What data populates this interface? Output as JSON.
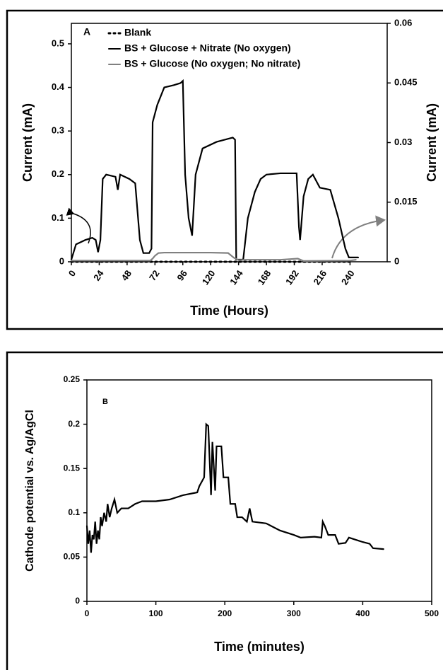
{
  "chart_data": [
    {
      "type": "line",
      "annotation": "A",
      "x_label": "Time (Hours)",
      "y_label": "Current (mA)",
      "y2_label": "Current (mA)",
      "xlim": [
        0,
        272
      ],
      "xticks": [
        0,
        24,
        48,
        72,
        96,
        120,
        144,
        168,
        192,
        216,
        240
      ],
      "ylim": [
        0,
        0.547
      ],
      "yticks": [
        0,
        0.1,
        0.2,
        0.3,
        0.4,
        0.5
      ],
      "y2lim": [
        0,
        0.06
      ],
      "y2ticks": [
        0,
        0.015,
        0.03,
        0.045,
        0.06
      ],
      "legend": "top-left",
      "series": [
        {
          "name": "Blank",
          "color": "#000000",
          "line_style": "dotted",
          "x": [
            0,
            240
          ],
          "values": [
            0,
            0
          ]
        },
        {
          "name": "BS + Glucose + Nitrate (No oxygen)",
          "color": "#000000",
          "line_style": "solid",
          "x": [
            0,
            4,
            12,
            18,
            21,
            23,
            25,
            27,
            30,
            38,
            40,
            42,
            50,
            55,
            59,
            62,
            67,
            69,
            70,
            74,
            80,
            88,
            94,
            96,
            98,
            101,
            104,
            107,
            113,
            125,
            139,
            141,
            142,
            148,
            152,
            158,
            163,
            168,
            180,
            194,
            196,
            197,
            200,
            204,
            208,
            212,
            214,
            223,
            230,
            236,
            239,
            247
          ],
          "values": [
            0.005,
            0.04,
            0.05,
            0.055,
            0.05,
            0.022,
            0.05,
            0.19,
            0.2,
            0.195,
            0.165,
            0.2,
            0.19,
            0.18,
            0.05,
            0.02,
            0.02,
            0.03,
            0.32,
            0.36,
            0.4,
            0.405,
            0.41,
            0.415,
            0.2,
            0.1,
            0.06,
            0.2,
            0.26,
            0.275,
            0.285,
            0.28,
            0.005,
            0.005,
            0.1,
            0.16,
            0.19,
            0.2,
            0.203,
            0.203,
            0.08,
            0.05,
            0.15,
            0.19,
            0.2,
            0.18,
            0.17,
            0.165,
            0.1,
            0.03,
            0.01,
            0.01
          ]
        },
        {
          "name": "BS + Glucose (No oxygen; No nitrate)",
          "color": "#808080",
          "line_style": "solid",
          "axis": "y2",
          "x": [
            0,
            68,
            70,
            72,
            75,
            80,
            100,
            120,
            135,
            140,
            144,
            150,
            180,
            195,
            200,
            240,
            245
          ],
          "values": [
            0.0003,
            0.0003,
            0.0008,
            0.0015,
            0.0022,
            0.0023,
            0.0023,
            0.0023,
            0.0022,
            0.001,
            0.0004,
            0.0005,
            0.0005,
            0.0008,
            0.0002,
            0.0003,
            0.0005
          ]
        }
      ]
    },
    {
      "type": "line",
      "annotation": "B",
      "x_label": "Time (minutes)",
      "y_label": "Cathode potential vs. Ag/AgCl",
      "xlim": [
        0,
        500
      ],
      "xticks": [
        0,
        100,
        200,
        300,
        400,
        500
      ],
      "ylim": [
        0,
        0.25
      ],
      "yticks": [
        0,
        0.05,
        0.1,
        0.15,
        0.2,
        0.25
      ],
      "series": [
        {
          "color": "#000000",
          "line_style": "solid",
          "x": [
            0,
            2,
            4,
            6,
            8,
            10,
            12,
            14,
            16,
            18,
            20,
            22,
            25,
            28,
            30,
            33,
            36,
            40,
            44,
            50,
            60,
            70,
            80,
            100,
            120,
            140,
            160,
            163,
            170,
            173,
            176,
            180,
            182,
            186,
            188,
            195,
            198,
            205,
            208,
            215,
            218,
            225,
            232,
            236,
            240,
            260,
            280,
            300,
            310,
            330,
            340,
            342,
            345,
            350,
            360,
            365,
            375,
            380,
            400,
            410,
            415,
            430
          ],
          "values": [
            0.085,
            0.065,
            0.08,
            0.055,
            0.075,
            0.07,
            0.09,
            0.065,
            0.08,
            0.07,
            0.095,
            0.085,
            0.1,
            0.09,
            0.11,
            0.095,
            0.105,
            0.115,
            0.1,
            0.105,
            0.105,
            0.11,
            0.113,
            0.113,
            0.115,
            0.12,
            0.123,
            0.13,
            0.14,
            0.2,
            0.198,
            0.12,
            0.18,
            0.125,
            0.175,
            0.175,
            0.14,
            0.14,
            0.11,
            0.11,
            0.095,
            0.095,
            0.09,
            0.105,
            0.09,
            0.088,
            0.08,
            0.075,
            0.072,
            0.073,
            0.072,
            0.09,
            0.085,
            0.075,
            0.075,
            0.065,
            0.066,
            0.072,
            0.067,
            0.065,
            0.06,
            0.059
          ]
        }
      ]
    }
  ]
}
